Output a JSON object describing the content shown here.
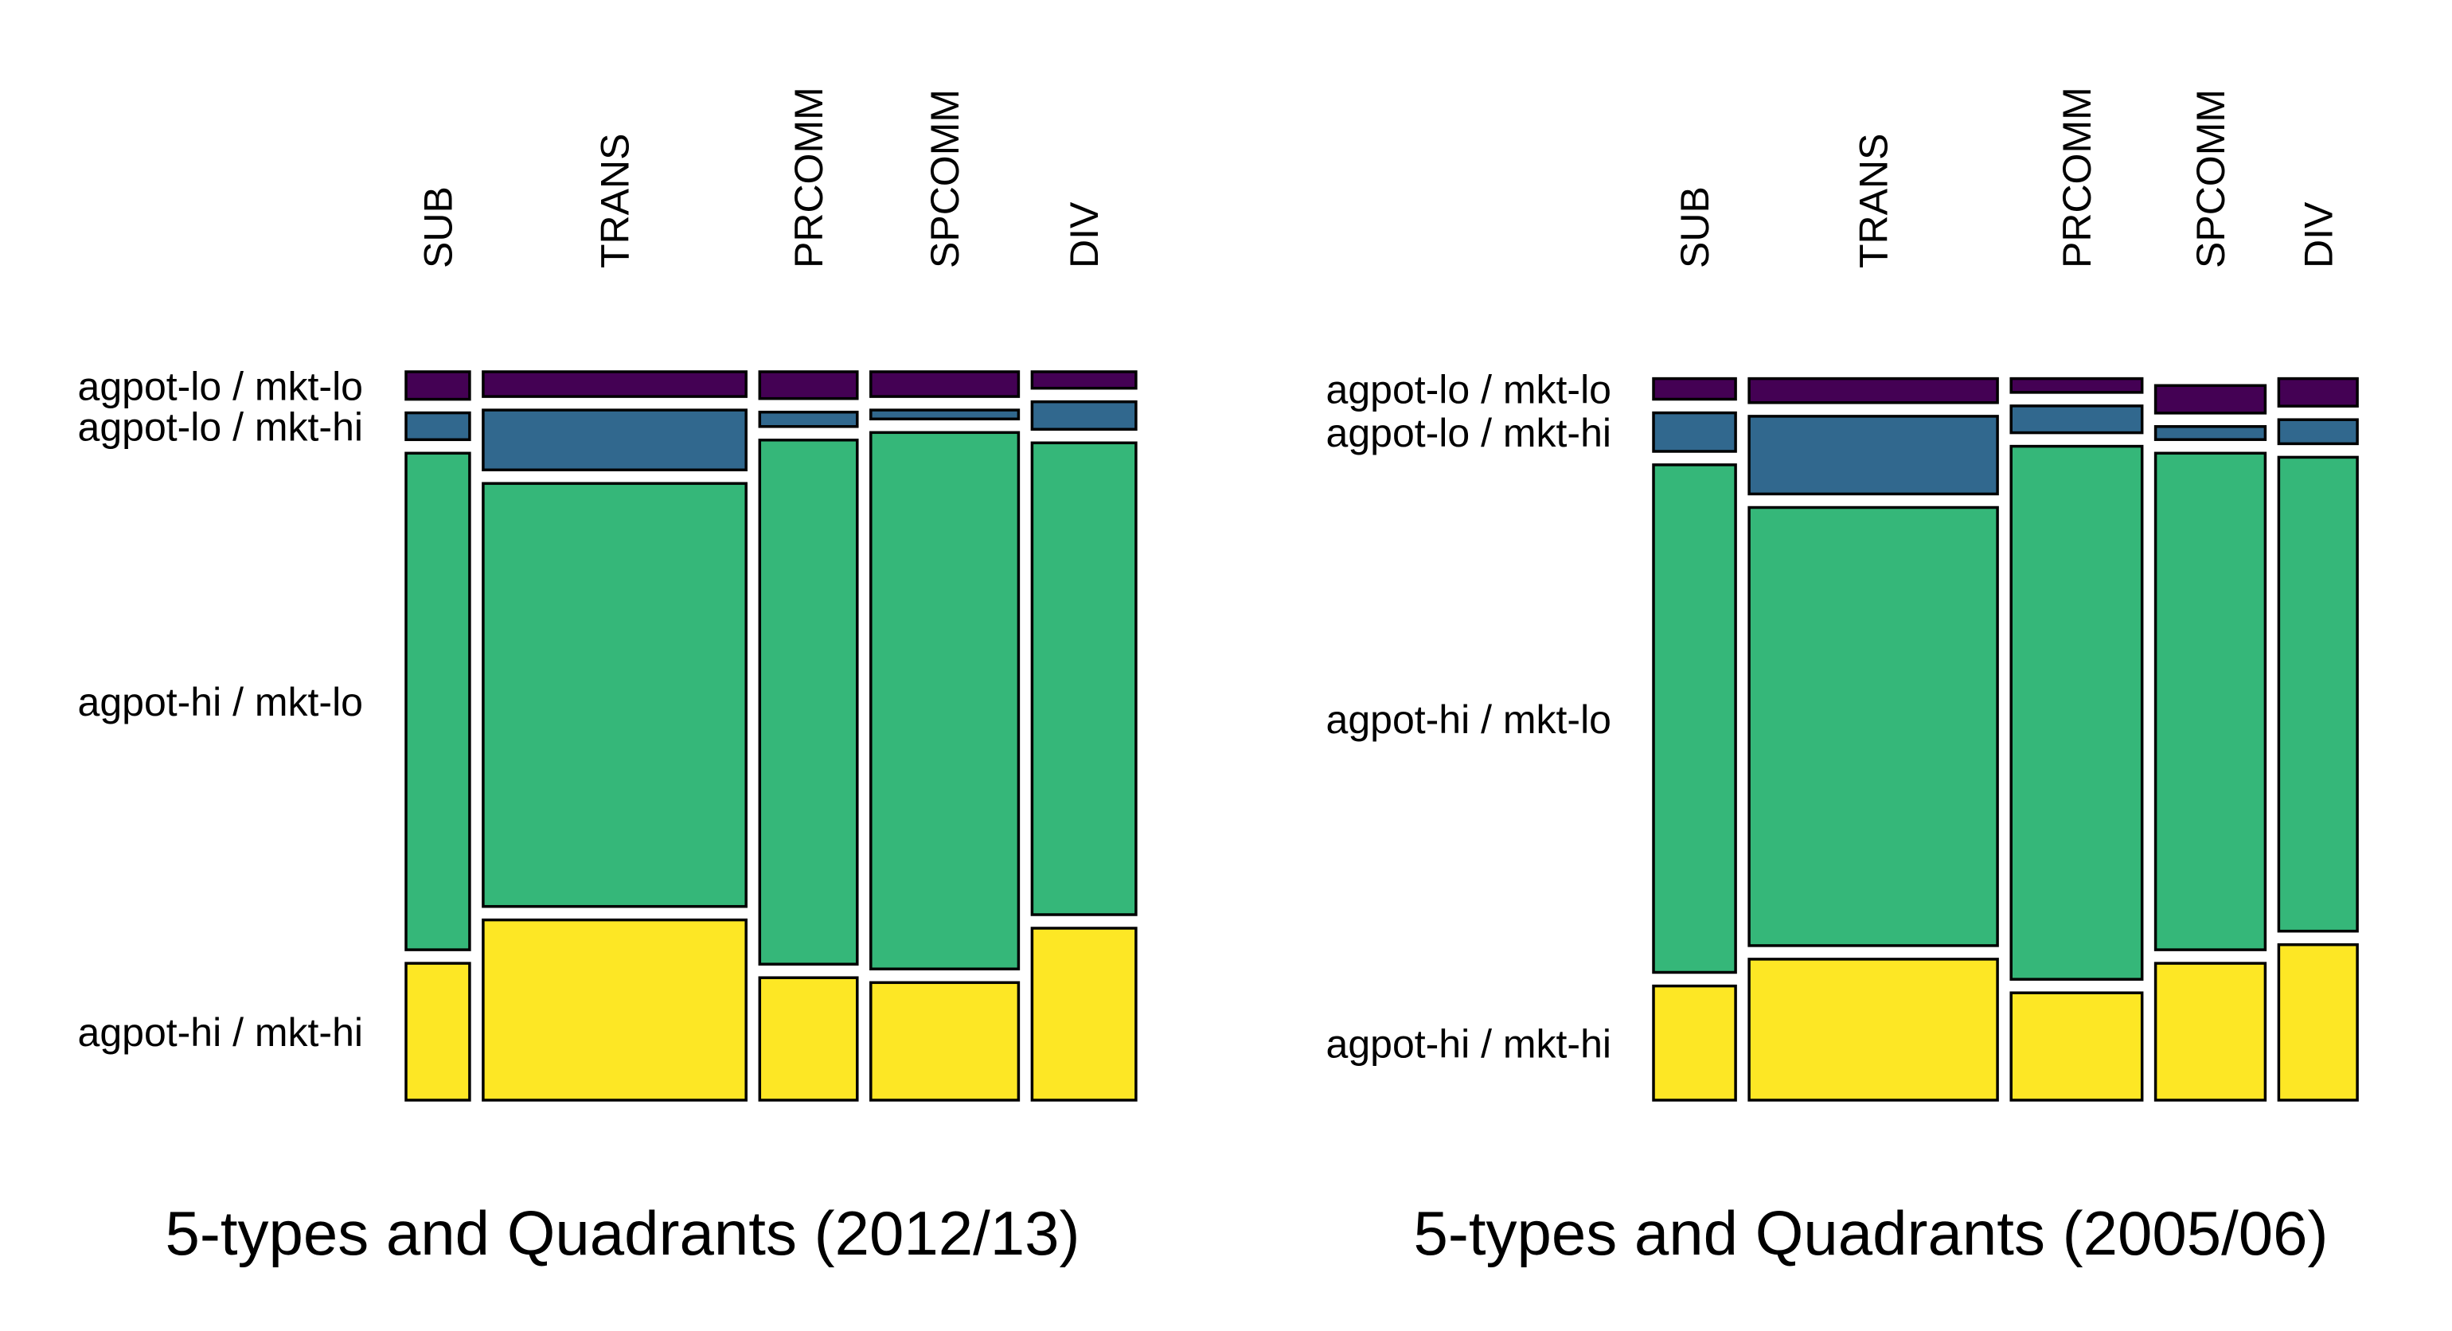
{
  "chart_data": [
    {
      "type": "mosaic",
      "title": "5-types and Quadrants (2012/13)",
      "categories": [
        "SUB",
        "TRANS",
        "PRCOMM",
        "SPCOMM",
        "DIV"
      ],
      "column_shares": [
        0.09,
        0.372,
        0.138,
        0.209,
        0.147
      ],
      "series": [
        {
          "name": "agpot-lo / mkt-lo",
          "values": [
            0.04,
            0.036,
            0.039,
            0.036,
            0.024
          ]
        },
        {
          "name": "agpot-lo / mkt-hi",
          "values": [
            0.039,
            0.087,
            0.021,
            0.013,
            0.04
          ]
        },
        {
          "name": "agpot-hi / mkt-lo",
          "values": [
            0.722,
            0.615,
            0.762,
            0.78,
            0.686
          ]
        },
        {
          "name": "agpot-hi / mkt-hi",
          "values": [
            0.199,
            0.262,
            0.178,
            0.171,
            0.25
          ]
        }
      ]
    },
    {
      "type": "mosaic",
      "title": "5-types and Quadrants (2005/06)",
      "categories": [
        "SUB",
        "TRANS",
        "PRCOMM",
        "SPCOMM",
        "DIV"
      ],
      "column_shares": [
        0.116,
        0.351,
        0.185,
        0.155,
        0.111
      ],
      "series": [
        {
          "name": "agpot-lo / mkt-lo",
          "values": [
            0.03,
            0.035,
            0.02,
            0.04,
            0.04
          ]
        },
        {
          "name": "agpot-lo / mkt-hi",
          "values": [
            0.056,
            0.113,
            0.039,
            0.019,
            0.035
          ]
        },
        {
          "name": "agpot-hi / mkt-lo",
          "values": [
            0.738,
            0.637,
            0.775,
            0.722,
            0.689
          ]
        },
        {
          "name": "agpot-hi / mkt-hi",
          "values": [
            0.166,
            0.205,
            0.156,
            0.199,
            0.226
          ]
        }
      ]
    }
  ],
  "colors": {
    "fills": [
      "#440154",
      "#31688e",
      "#35b779",
      "#fde725"
    ],
    "stroke": "#000000"
  }
}
